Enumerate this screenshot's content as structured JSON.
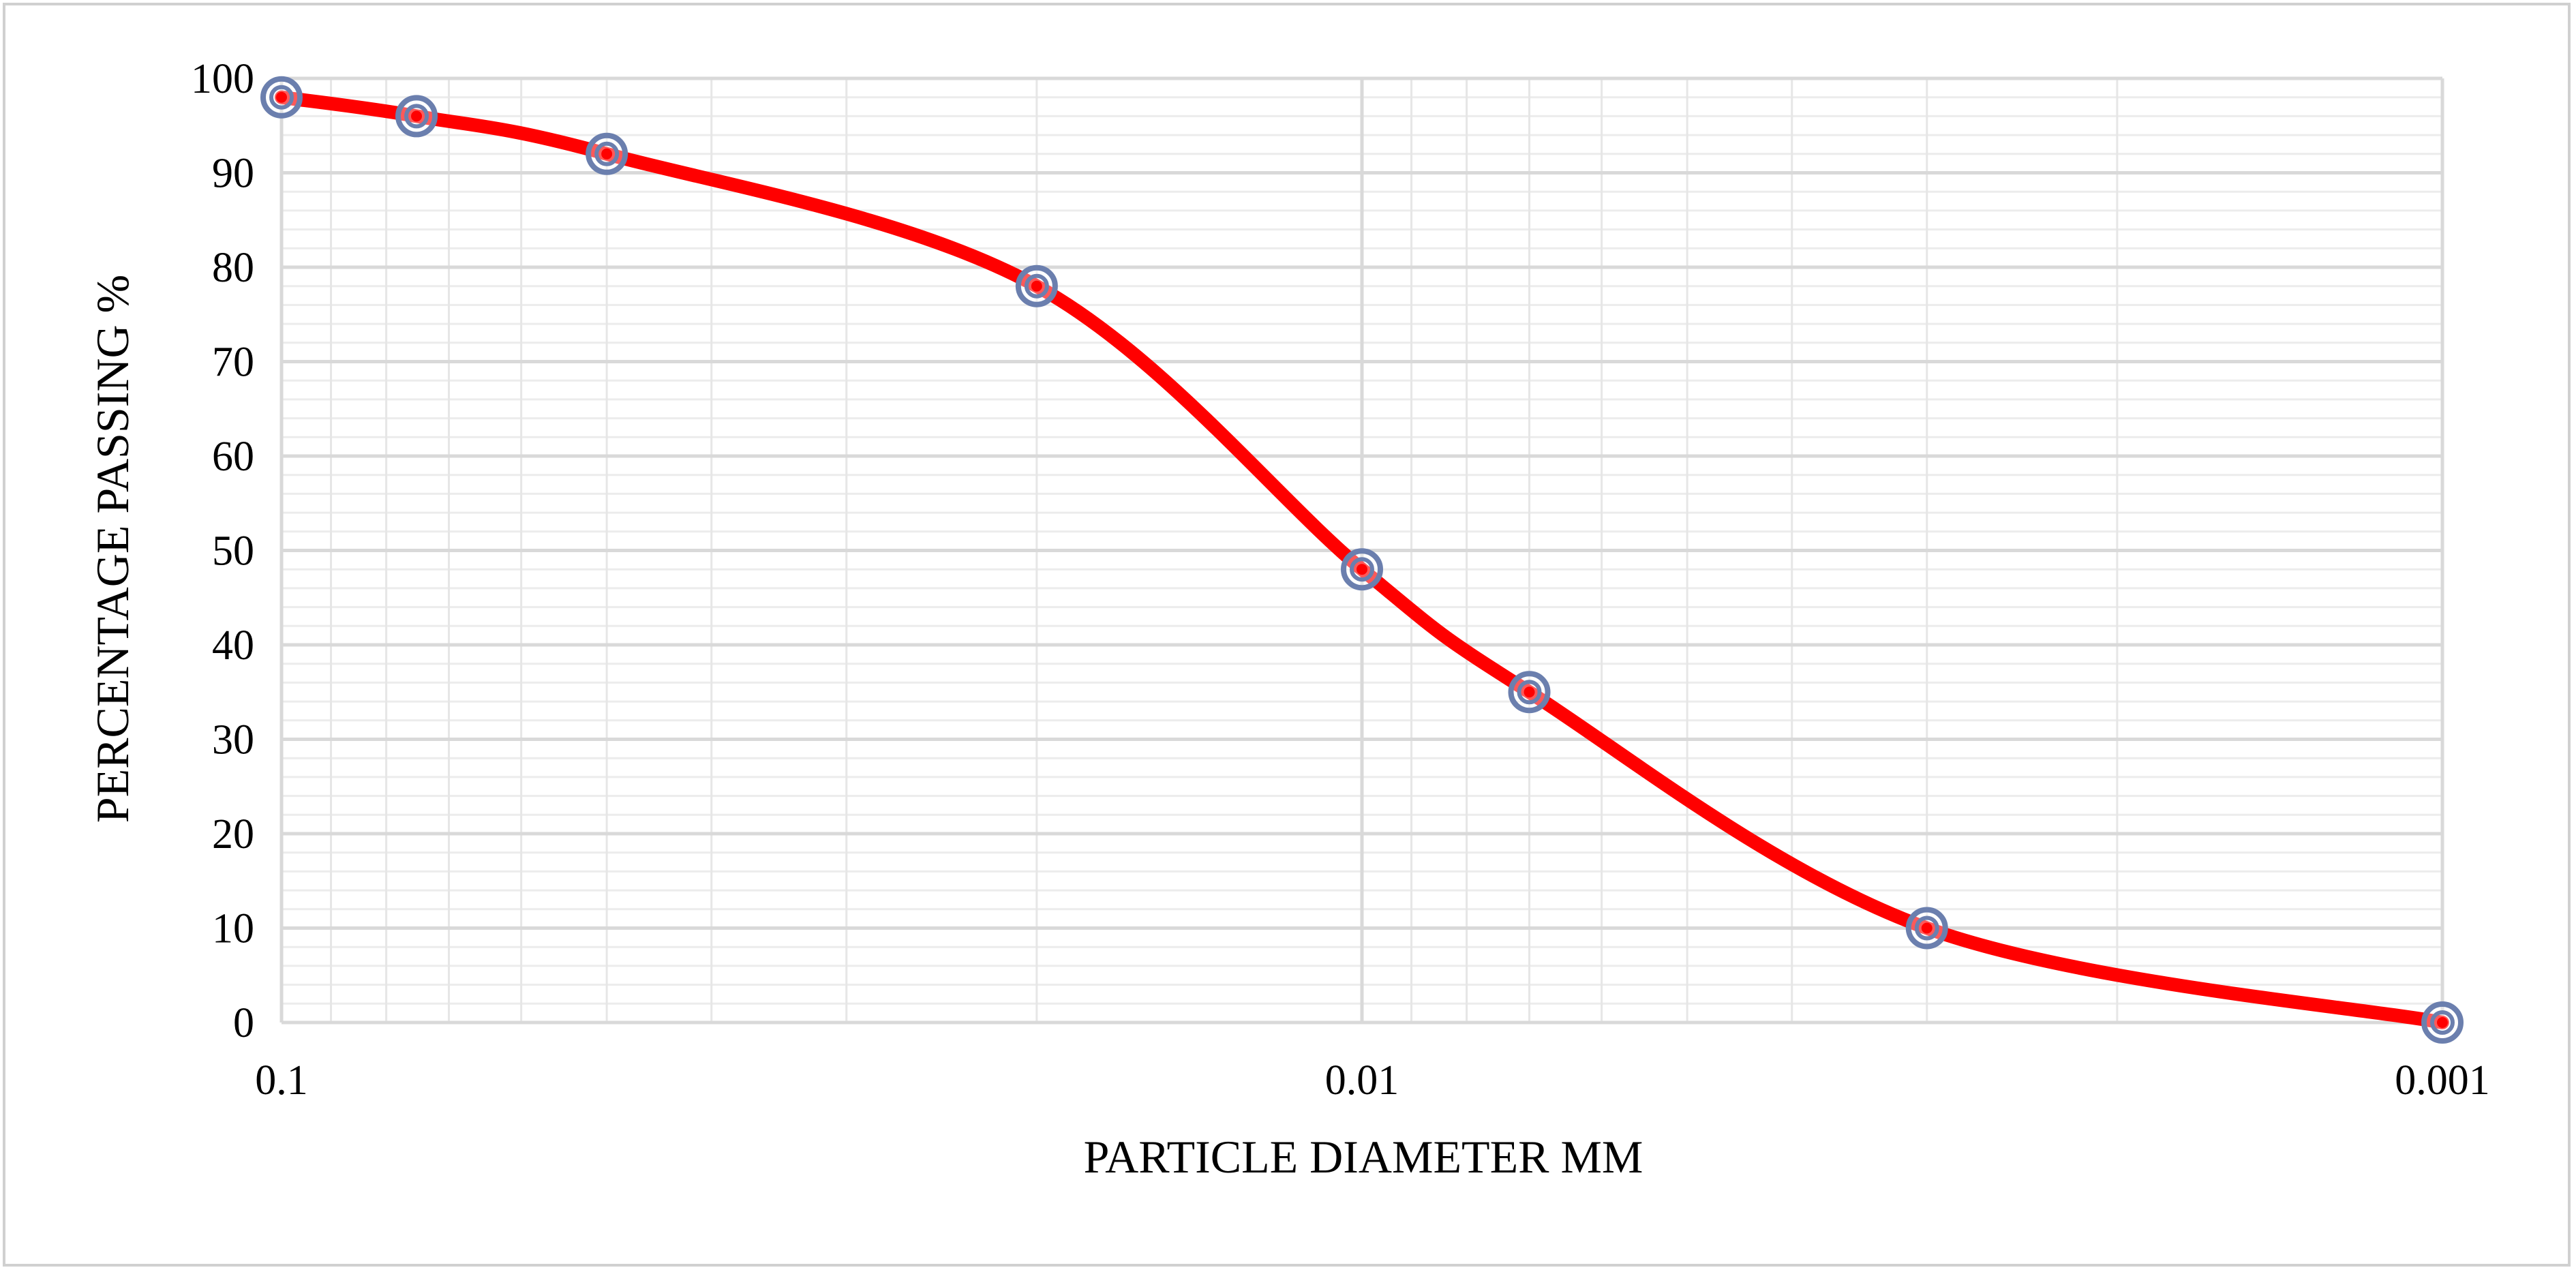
{
  "chart_data": {
    "type": "line",
    "xscale": "log",
    "xreversed": true,
    "xlim": [
      0.1,
      0.001
    ],
    "ylim": [
      0,
      100
    ],
    "x_ticks": [
      "0.1",
      "0.01",
      "0.001"
    ],
    "y_ticks": [
      "0",
      "10",
      "20",
      "30",
      "40",
      "50",
      "60",
      "70",
      "80",
      "90",
      "100"
    ],
    "xlabel": "PARTICLE DIAMETER  MM",
    "ylabel": "PERCENTAGE PASSING %",
    "grid": true,
    "series": [
      {
        "x": [
          0.1,
          0.075,
          0.05,
          0.02,
          0.01,
          0.007,
          0.003,
          0.001
        ],
        "y": [
          98,
          96,
          92,
          78,
          48,
          35,
          10,
          0
        ],
        "smooth": true
      }
    ],
    "colors": {
      "line": "#ff0000",
      "marker": "#6b7fae",
      "grid": "#d9d9d9",
      "frame": "#d0d0d0"
    }
  }
}
